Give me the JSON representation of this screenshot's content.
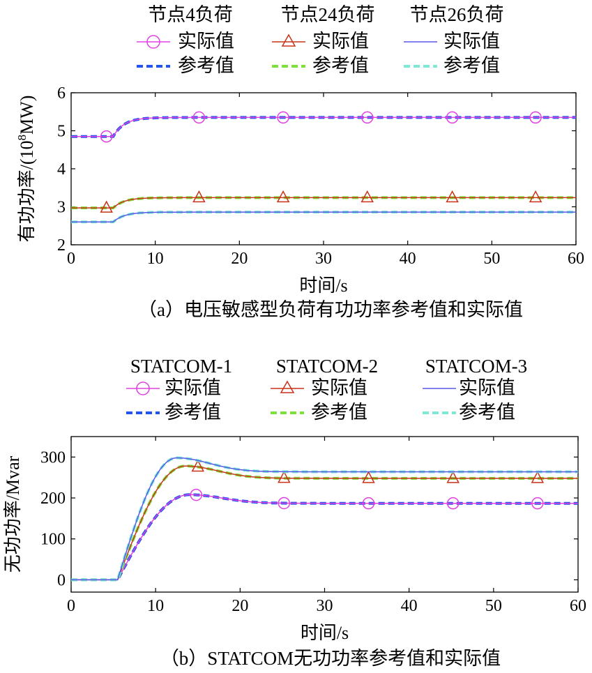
{
  "chart_data": [
    {
      "type": "line",
      "caption": "（a）电压敏感型负荷有功功率参考值和实际值",
      "xlabel": "时间/s",
      "ylabel": "有功功率/(10",
      "ylabel_sup": "8",
      "ylabel_tail": "MW)",
      "xlim": [
        0,
        60
      ],
      "ylim": [
        2,
        6
      ],
      "xticks": [
        "0",
        "10",
        "20",
        "30",
        "40",
        "50",
        "60"
      ],
      "yticks": [
        "2",
        "3",
        "4",
        "5",
        "6"
      ],
      "step_time": 5,
      "groups": [
        {
          "title": "节点4负荷",
          "actual": {
            "name": "实际值",
            "color": "#e040e0",
            "marker": "circle"
          },
          "reference": {
            "name": "参考值",
            "color": "#2255ee"
          },
          "initial": 4.85,
          "final": 5.35,
          "marker_x": [
            4.2,
            15.2,
            25.2,
            35.2,
            45.3,
            55.2
          ]
        },
        {
          "title": "节点24负荷",
          "actual": {
            "name": "实际值",
            "color": "#c83218",
            "marker": "triangle"
          },
          "reference": {
            "name": "参考值",
            "color": "#7ee03c"
          },
          "initial": 2.97,
          "final": 3.24,
          "marker_x": [
            4.2,
            15.2,
            25.2,
            35.2,
            45.3,
            55.2
          ]
        },
        {
          "title": "节点26负荷",
          "actual": {
            "name": "实际值",
            "color": "#5858e8",
            "marker": "none"
          },
          "reference": {
            "name": "参考值",
            "color": "#7de8d4"
          },
          "initial": 2.6,
          "final": 2.86,
          "marker_x": []
        }
      ]
    },
    {
      "type": "line",
      "caption": "（b）STATCOM无功功率参考值和实际值",
      "xlabel": "时间/s",
      "ylabel": "无功功率/Mvar",
      "xlim": [
        0,
        60
      ],
      "ylim": [
        -30,
        350
      ],
      "xticks": [
        "0",
        "10",
        "20",
        "30",
        "40",
        "50",
        "60"
      ],
      "yticks": [
        "0",
        "100",
        "200",
        "300"
      ],
      "ytick_values": [
        0,
        100,
        200,
        300
      ],
      "step_time": 5.5,
      "groups": [
        {
          "title": "STATCOM-1",
          "actual": {
            "name": "实际值",
            "color": "#e040e0",
            "marker": "circle"
          },
          "reference": {
            "name": "参考值",
            "color": "#2255ee"
          },
          "peak": 208,
          "peak_time": 14,
          "final": 187,
          "marker_x": [
            14.8,
            25.2,
            35.2,
            45.2,
            55.2
          ]
        },
        {
          "title": "STATCOM-2",
          "actual": {
            "name": "实际值",
            "color": "#c83218",
            "marker": "triangle"
          },
          "reference": {
            "name": "参考值",
            "color": "#7ee03c"
          },
          "peak": 278,
          "peak_time": 13.5,
          "final": 248,
          "marker_x": [
            15,
            25.2,
            35.2,
            45.2,
            55.2
          ]
        },
        {
          "title": "STATCOM-3",
          "actual": {
            "name": "实际值",
            "color": "#5858e8",
            "marker": "none"
          },
          "reference": {
            "name": "参考值",
            "color": "#7de8d4"
          },
          "peak": 298,
          "peak_time": 12.5,
          "final": 264,
          "marker_x": []
        }
      ]
    }
  ]
}
